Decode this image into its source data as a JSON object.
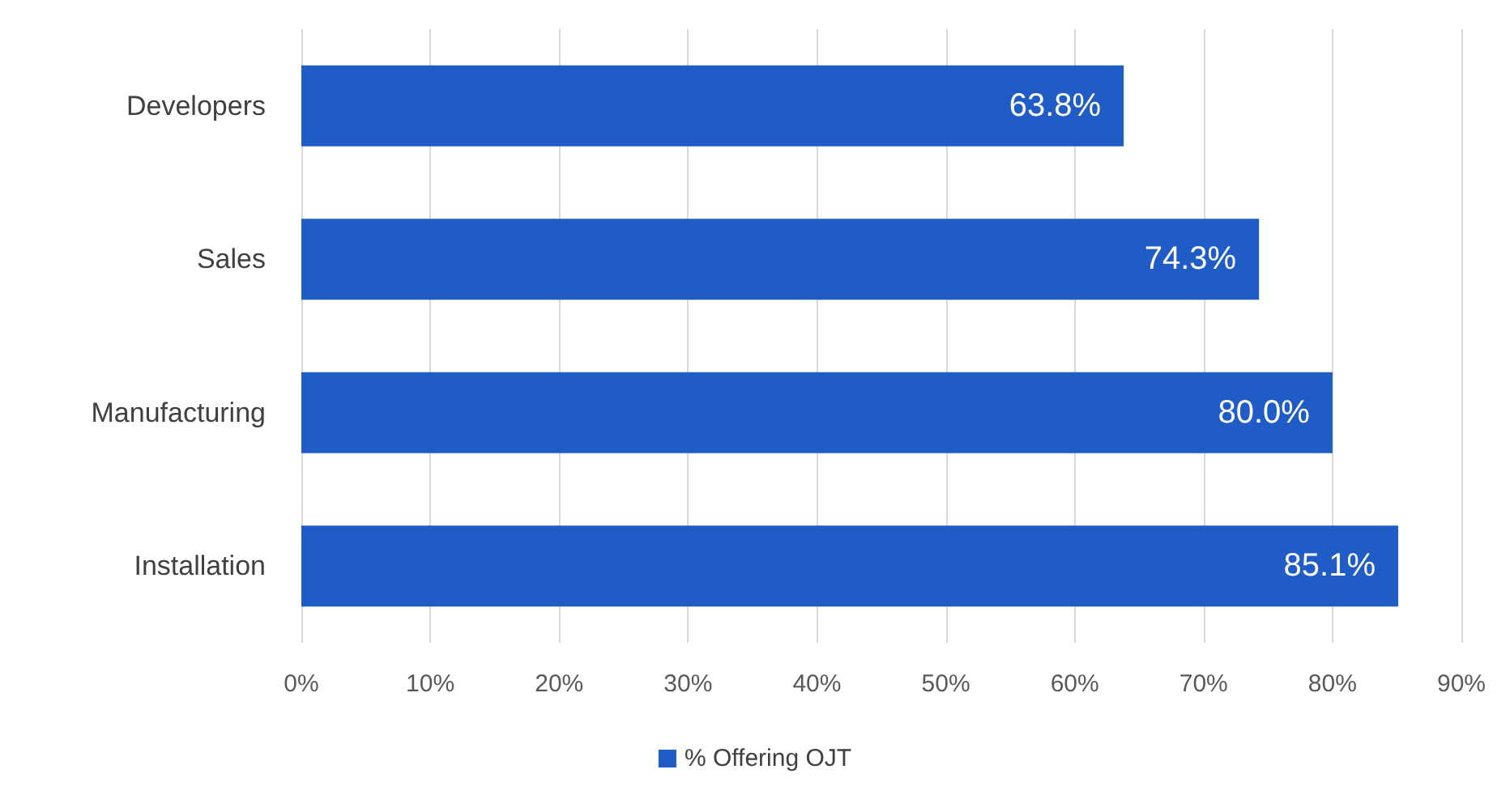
{
  "chart_data": {
    "type": "bar",
    "orientation": "horizontal",
    "categories": [
      "Developers",
      "Sales",
      "Manufacturing",
      "Installation"
    ],
    "series": [
      {
        "name": "% Offering OJT",
        "color": "#1f5cc6",
        "values": [
          63.8,
          74.3,
          80.0,
          85.1
        ],
        "value_labels": [
          "63.8%",
          "74.3%",
          "80.0%",
          "85.1%"
        ]
      }
    ],
    "xlim": [
      0,
      90
    ],
    "xticks": [
      {
        "value": 0,
        "label": "0%"
      },
      {
        "value": 10,
        "label": "10%"
      },
      {
        "value": 20,
        "label": "20%"
      },
      {
        "value": 30,
        "label": "30%"
      },
      {
        "value": 40,
        "label": "40%"
      },
      {
        "value": 50,
        "label": "50%"
      },
      {
        "value": 60,
        "label": "60%"
      },
      {
        "value": 70,
        "label": "70%"
      },
      {
        "value": 80,
        "label": "80%"
      },
      {
        "value": 90,
        "label": "90%"
      }
    ],
    "grid": "x",
    "legend": "bottom"
  }
}
